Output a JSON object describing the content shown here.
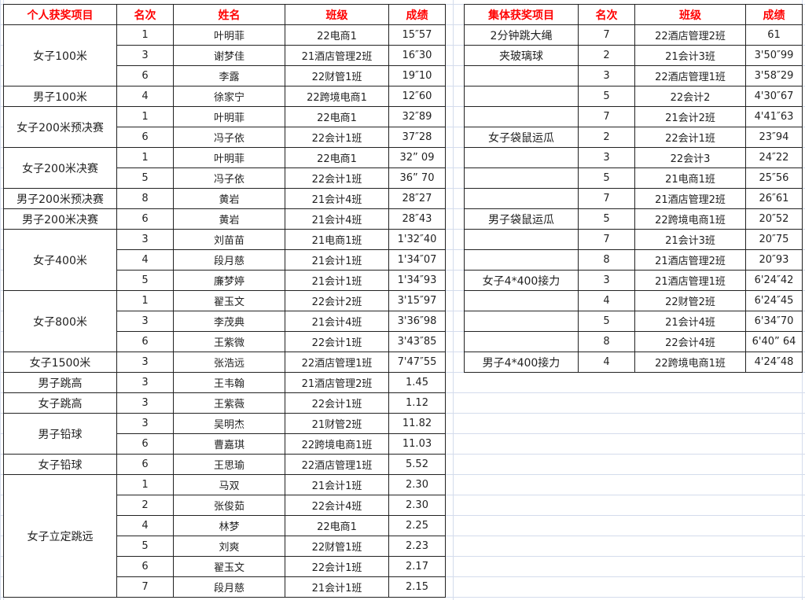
{
  "individual": {
    "headers": [
      "个人获奖项目",
      "名次",
      "姓名",
      "班级",
      "成绩"
    ],
    "groups": [
      {
        "event": "女子100米",
        "rows": [
          [
            "1",
            "叶明菲",
            "22电商1",
            "15″57"
          ],
          [
            "3",
            "谢梦佳",
            "21酒店管理2班",
            "16″30"
          ],
          [
            "6",
            "李露",
            "22财管1班",
            "19″10"
          ]
        ]
      },
      {
        "event": "男子100米",
        "rows": [
          [
            "4",
            "徐家宁",
            "22跨境电商1",
            "12″60"
          ]
        ]
      },
      {
        "event": "女子200米预决赛",
        "rows": [
          [
            "1",
            "叶明菲",
            "22电商1",
            "32″89"
          ],
          [
            "6",
            "冯子依",
            "22会计1班",
            "37″28"
          ]
        ]
      },
      {
        "event": "女子200米决赛",
        "rows": [
          [
            "1",
            "叶明菲",
            "22电商1",
            "32” 09"
          ],
          [
            "5",
            "冯子依",
            "22会计1班",
            "36” 70"
          ]
        ]
      },
      {
        "event": "男子200米预决赛",
        "rows": [
          [
            "8",
            "黄岩",
            "21会计4班",
            "28″27"
          ]
        ]
      },
      {
        "event": "男子200米决赛",
        "rows": [
          [
            "6",
            "黄岩",
            "21会计4班",
            "28″43"
          ]
        ]
      },
      {
        "event": "女子400米",
        "rows": [
          [
            "3",
            "刘苗苗",
            "21电商1班",
            "1'32″40"
          ],
          [
            "4",
            "段月慈",
            "21会计1班",
            "1'34″07"
          ],
          [
            "5",
            "廉梦婷",
            "21会计1班",
            "1'34″93"
          ]
        ]
      },
      {
        "event": "女子800米",
        "rows": [
          [
            "1",
            "翟玉文",
            "22会计2班",
            "3'15″97"
          ],
          [
            "3",
            "李茂典",
            "21会计4班",
            "3'36″98"
          ],
          [
            "6",
            "王紫微",
            "22会计1班",
            "3'43″85"
          ]
        ]
      },
      {
        "event": "女子1500米",
        "rows": [
          [
            "3",
            "张浩远",
            "22酒店管理1班",
            "7'47″55"
          ]
        ]
      },
      {
        "event": "男子跳高",
        "rows": [
          [
            "3",
            "王韦翰",
            "21酒店管理2班",
            "1.45"
          ]
        ]
      },
      {
        "event": "女子跳高",
        "rows": [
          [
            "3",
            "王紫薇",
            "22会计1班",
            "1.12"
          ]
        ]
      },
      {
        "event": "男子铅球",
        "rows": [
          [
            "3",
            "吴明杰",
            "21财管2班",
            "11.82"
          ],
          [
            "6",
            "曹嘉琪",
            "22跨境电商1班",
            "11.03"
          ]
        ]
      },
      {
        "event": "女子铅球",
        "rows": [
          [
            "6",
            "王思瑜",
            "22酒店管理1班",
            "5.52"
          ]
        ]
      },
      {
        "event": "女子立定跳远",
        "rows": [
          [
            "1",
            "马双",
            "21会计1班",
            "2.30"
          ],
          [
            "2",
            "张俊茹",
            "22会计4班",
            "2.30"
          ],
          [
            "4",
            "林梦",
            "22电商1",
            "2.25"
          ],
          [
            "5",
            "刘爽",
            "22财管1班",
            "2.23"
          ],
          [
            "6",
            "翟玉文",
            "22会计1班",
            "2.17"
          ],
          [
            "7",
            "段月慈",
            "21会计1班",
            "2.15"
          ]
        ]
      }
    ]
  },
  "team": {
    "headers": [
      "集体获奖项目",
      "名次",
      "班级",
      "成绩"
    ],
    "rows": [
      [
        "2分钟跳大绳",
        "7",
        "22酒店管理2班",
        "61"
      ],
      [
        "夹玻璃球",
        "2",
        "21会计3班",
        "3'50″99"
      ],
      [
        "",
        "3",
        "22酒店管理1班",
        "3'58″29"
      ],
      [
        "",
        "5",
        "22会计2",
        "4'30″67"
      ],
      [
        "",
        "7",
        "21会计2班",
        "4'41″63"
      ],
      [
        "女子袋鼠运瓜",
        "2",
        "22会计1班",
        "23″94"
      ],
      [
        "",
        "3",
        "22会计3",
        "24″22"
      ],
      [
        "",
        "5",
        "21电商1班",
        "25″56"
      ],
      [
        "",
        "7",
        "21酒店管理2班",
        "26″61"
      ],
      [
        "男子袋鼠运瓜",
        "5",
        "22跨境电商1班",
        "20″52"
      ],
      [
        "",
        "7",
        "21会计3班",
        "20″75"
      ],
      [
        "",
        "8",
        "21酒店管理2班",
        "20″93"
      ],
      [
        "女子4*400接力",
        "3",
        "21酒店管理1班",
        "6'24″42"
      ],
      [
        "",
        "4",
        "22财管2班",
        "6'24″45"
      ],
      [
        "",
        "5",
        "21会计4班",
        "6'34″70"
      ],
      [
        "",
        "8",
        "22会计4班",
        "6'40” 64"
      ],
      [
        "男子4*400接力",
        "4",
        "22跨境电商1班",
        "4'24″48"
      ]
    ]
  }
}
